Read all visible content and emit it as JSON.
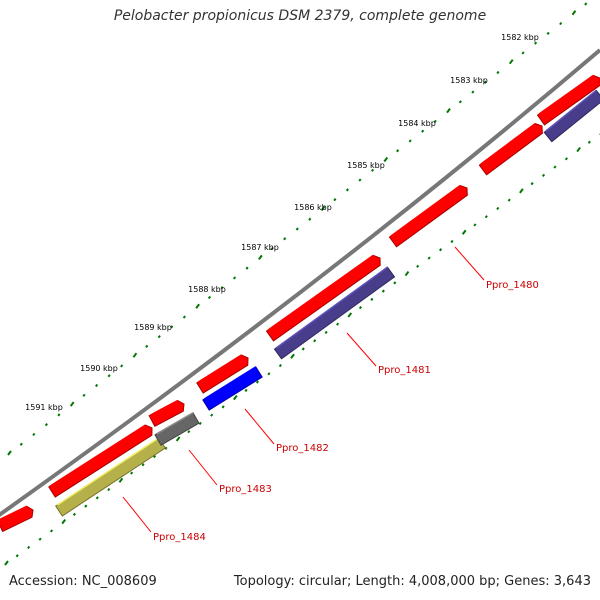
{
  "title": "Pelobacter propionicus DSM 2379, complete genome",
  "footer": {
    "accession": "Accession: NC_008609",
    "summary": "Topology: circular; Length: 4,008,000 bp; Genes: 3,643"
  },
  "ruler": {
    "ticks": [
      "1582 kbp",
      "1583 kbp",
      "1584 kbp",
      "1585 kbp",
      "1586 kbp",
      "1587 kbp",
      "1588 kbp",
      "1589 kbp",
      "1590 kbp",
      "1591 kbp"
    ]
  },
  "genes": [
    {
      "label": "Ppro_1480",
      "color": "#ff0000"
    },
    {
      "label": "Ppro_1481",
      "color": "#483d8b"
    },
    {
      "label": "Ppro_1482",
      "color": "#0000ff"
    },
    {
      "label": "Ppro_1483",
      "color": "#666666"
    },
    {
      "label": "Ppro_1484",
      "color": "#b5b04a"
    }
  ],
  "colors": {
    "backbone": "#777777",
    "tick": "#007700",
    "label_text": "#cc0000",
    "leader": "#ff0000",
    "cds": "#ff0000",
    "cds_purple": "#483d8b",
    "cds_blue": "#0000ff",
    "cds_gray": "#666666",
    "cds_olive": "#b5b04a"
  }
}
